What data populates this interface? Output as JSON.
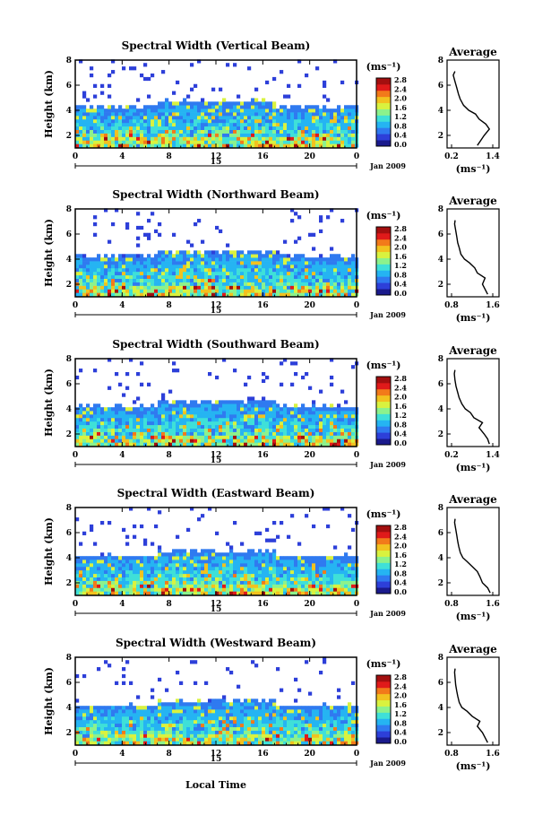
{
  "figure": {
    "x_axis_label": "Local Time",
    "date_label": "15",
    "month_year_label": "Jan 2009",
    "unit_label": "(ms⁻¹)",
    "colormap": [
      "#1a1a8c",
      "#2d3fd9",
      "#2f7af0",
      "#25b4f2",
      "#3fe0d8",
      "#8cf28c",
      "#d9f23f",
      "#f2c21f",
      "#f27a1a",
      "#e01a1a",
      "#a30f0f"
    ]
  },
  "chart_data": [
    {
      "type": "heatmap",
      "title": "Spectral Width (Vertical Beam)",
      "xlabel": "",
      "ylabel": "Height (km)",
      "x_ticks": [
        "0",
        "4",
        "8",
        "12",
        "16",
        "20",
        "0"
      ],
      "xlim": [
        0,
        24
      ],
      "y_ticks": [
        "2",
        "4",
        "6",
        "8"
      ],
      "ylim": [
        1,
        8
      ],
      "colorbar": {
        "label": "(ms⁻¹)",
        "ticks": [
          "0.0",
          "0.4",
          "0.8",
          "1.2",
          "1.6",
          "2.0",
          "2.4",
          "2.8"
        ],
        "range": [
          0,
          2.8
        ]
      },
      "average_profile": {
        "title": "Average",
        "xlabel": "(ms⁻¹)",
        "x_ticks": [
          "0.2",
          "1.4"
        ],
        "xlim": [
          0.2,
          1.4
        ],
        "y_ticks": [
          "2",
          "4",
          "6",
          "8"
        ],
        "ylim": [
          1,
          8
        ],
        "width": [
          0.95,
          1.05,
          1.15,
          1.3,
          1.2,
          1.0,
          0.9,
          0.7,
          0.55,
          0.45,
          0.4,
          0.35,
          0.3,
          0.25,
          0.3
        ],
        "height": [
          1.2,
          1.6,
          2.0,
          2.5,
          2.9,
          3.3,
          3.7,
          4.0,
          4.4,
          4.9,
          5.3,
          5.8,
          6.3,
          6.8,
          7.1
        ]
      }
    },
    {
      "type": "heatmap",
      "title": "Spectral Width (Northward Beam)",
      "xlabel": "",
      "ylabel": "Height (km)",
      "x_ticks": [
        "0",
        "4",
        "8",
        "12",
        "16",
        "20",
        "0"
      ],
      "xlim": [
        0,
        24
      ],
      "y_ticks": [
        "2",
        "4",
        "6",
        "8"
      ],
      "ylim": [
        1,
        8
      ],
      "colorbar": {
        "label": "(ms⁻¹)",
        "ticks": [
          "0.0",
          "0.4",
          "0.8",
          "1.2",
          "1.6",
          "2.0",
          "2.4",
          "2.8"
        ],
        "range": [
          0,
          2.8
        ]
      },
      "average_profile": {
        "title": "Average",
        "xlabel": "(ms⁻¹)",
        "x_ticks": [
          "0.8",
          "1.6"
        ],
        "xlim": [
          0.8,
          1.6
        ],
        "y_ticks": [
          "2",
          "4",
          "6",
          "8"
        ],
        "ylim": [
          1,
          8
        ],
        "width": [
          1.5,
          1.45,
          1.4,
          1.45,
          1.3,
          1.25,
          1.15,
          1.05,
          0.98,
          0.95,
          0.92,
          0.9,
          0.88,
          0.86,
          0.87
        ],
        "height": [
          1.2,
          1.6,
          2.0,
          2.5,
          2.9,
          3.3,
          3.7,
          4.0,
          4.4,
          4.9,
          5.3,
          5.8,
          6.3,
          6.8,
          7.1
        ]
      }
    },
    {
      "type": "heatmap",
      "title": "Spectral Width (Southward Beam)",
      "xlabel": "",
      "ylabel": "Height (km)",
      "x_ticks": [
        "0",
        "4",
        "8",
        "12",
        "16",
        "20",
        "0"
      ],
      "xlim": [
        0,
        24
      ],
      "y_ticks": [
        "2",
        "4",
        "6",
        "8"
      ],
      "ylim": [
        1,
        8
      ],
      "colorbar": {
        "label": "(ms⁻¹)",
        "ticks": [
          "0.0",
          "0.4",
          "0.8",
          "1.2",
          "1.6",
          "2.0",
          "2.4",
          "2.8"
        ],
        "range": [
          0,
          2.8
        ]
      },
      "average_profile": {
        "title": "Average",
        "xlabel": "(ms⁻¹)",
        "x_ticks": [
          "0.2",
          "1.4"
        ],
        "xlim": [
          0.2,
          1.4
        ],
        "y_ticks": [
          "2",
          "4",
          "6",
          "8"
        ],
        "ylim": [
          1,
          8
        ],
        "width": [
          1.3,
          1.25,
          1.15,
          1.0,
          1.1,
          0.85,
          0.75,
          0.6,
          0.5,
          0.42,
          0.38,
          0.33,
          0.3,
          0.28,
          0.3
        ],
        "height": [
          1.2,
          1.6,
          2.0,
          2.5,
          2.9,
          3.3,
          3.7,
          4.0,
          4.4,
          4.9,
          5.3,
          5.8,
          6.3,
          6.8,
          7.1
        ]
      }
    },
    {
      "type": "heatmap",
      "title": "Spectral Width (Eastward Beam)",
      "xlabel": "",
      "ylabel": "Height (km)",
      "x_ticks": [
        "0",
        "4",
        "8",
        "12",
        "16",
        "20",
        "0"
      ],
      "xlim": [
        0,
        24
      ],
      "y_ticks": [
        "2",
        "4",
        "6",
        "8"
      ],
      "ylim": [
        1,
        8
      ],
      "colorbar": {
        "label": "(ms⁻¹)",
        "ticks": [
          "0.0",
          "0.4",
          "0.8",
          "1.2",
          "1.6",
          "2.0",
          "2.4",
          "2.8"
        ],
        "range": [
          0,
          2.8
        ]
      },
      "average_profile": {
        "title": "Average",
        "xlabel": "(ms⁻¹)",
        "x_ticks": [
          "0.8",
          "1.6"
        ],
        "xlim": [
          0.8,
          1.6
        ],
        "y_ticks": [
          "2",
          "4",
          "6",
          "8"
        ],
        "ylim": [
          1,
          8
        ],
        "width": [
          1.55,
          1.5,
          1.4,
          1.35,
          1.3,
          1.2,
          1.1,
          1.02,
          0.97,
          0.94,
          0.92,
          0.9,
          0.88,
          0.86,
          0.87
        ],
        "height": [
          1.2,
          1.6,
          2.0,
          2.5,
          2.9,
          3.3,
          3.7,
          4.0,
          4.4,
          4.9,
          5.3,
          5.8,
          6.3,
          6.8,
          7.1
        ]
      }
    },
    {
      "type": "heatmap",
      "title": "Spectral Width (Westward Beam)",
      "xlabel": "Local Time",
      "ylabel": "Height (km)",
      "x_ticks": [
        "0",
        "4",
        "8",
        "12",
        "16",
        "20",
        "0"
      ],
      "xlim": [
        0,
        24
      ],
      "y_ticks": [
        "2",
        "4",
        "6",
        "8"
      ],
      "ylim": [
        1,
        8
      ],
      "colorbar": {
        "label": "(ms⁻¹)",
        "ticks": [
          "0.0",
          "0.4",
          "0.8",
          "1.2",
          "1.6",
          "2.0",
          "2.4",
          "2.8"
        ],
        "range": [
          0,
          2.8
        ]
      },
      "average_profile": {
        "title": "Average",
        "xlabel": "(ms⁻¹)",
        "x_ticks": [
          "0.8",
          "1.6"
        ],
        "xlim": [
          0.8,
          1.6
        ],
        "y_ticks": [
          "2",
          "4",
          "6",
          "8"
        ],
        "ylim": [
          1,
          8
        ],
        "width": [
          1.5,
          1.45,
          1.4,
          1.3,
          1.35,
          1.2,
          1.1,
          1.0,
          0.95,
          0.92,
          0.9,
          0.88,
          0.87,
          0.86,
          0.87
        ],
        "height": [
          1.2,
          1.6,
          2.0,
          2.5,
          2.9,
          3.3,
          3.7,
          4.0,
          4.4,
          4.9,
          5.3,
          5.8,
          6.3,
          6.8,
          7.1
        ]
      }
    }
  ]
}
